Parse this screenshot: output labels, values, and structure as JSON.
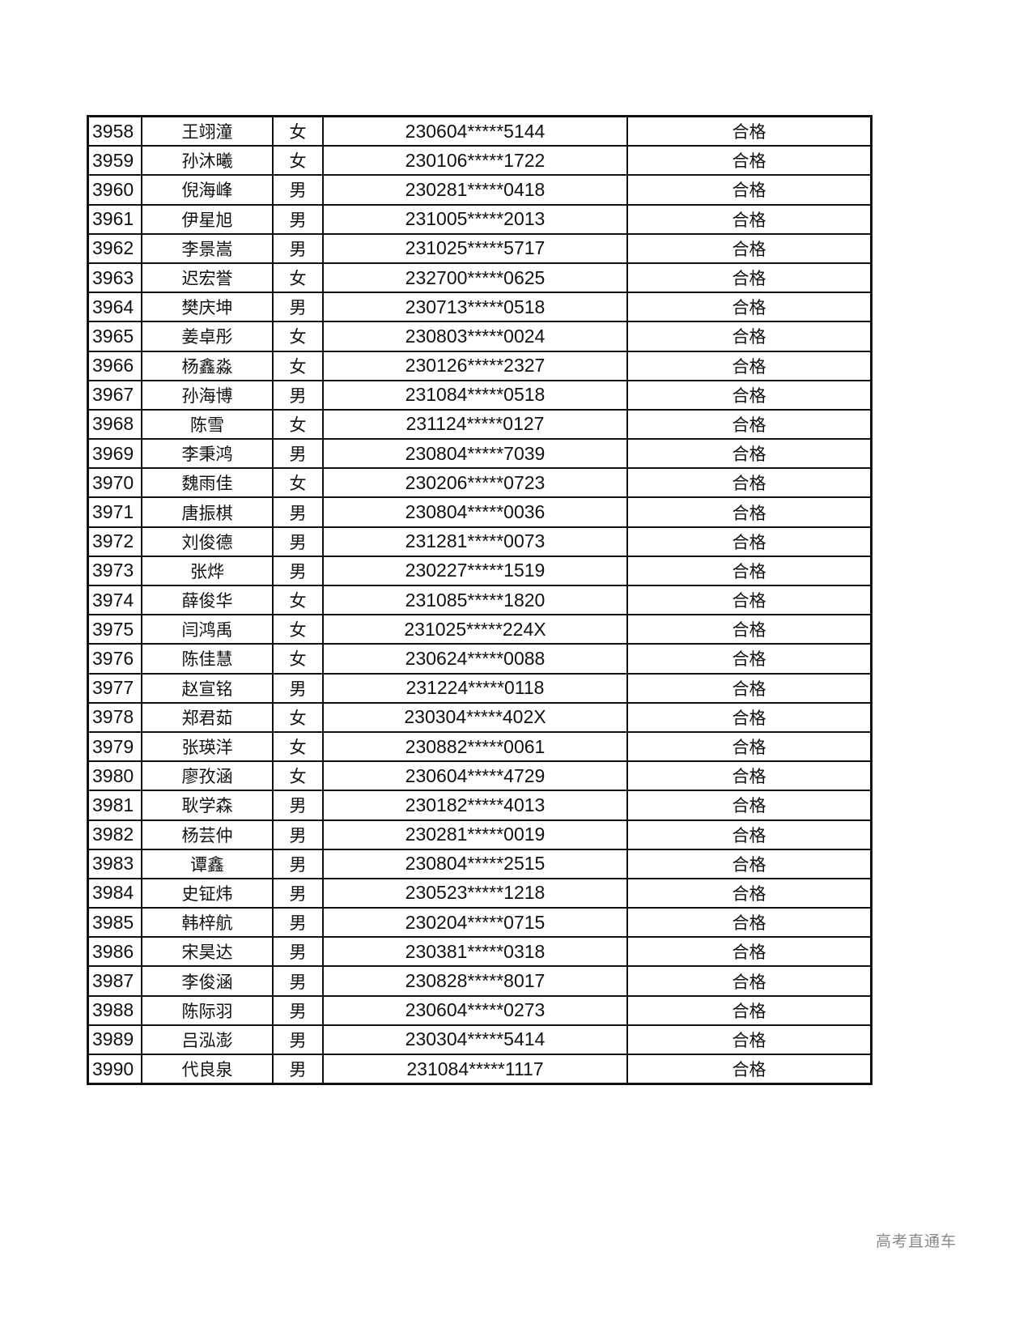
{
  "rows": [
    {
      "no": "3958",
      "name": "王翊潼",
      "sex": "女",
      "id": "230604*****5144",
      "result": "合格"
    },
    {
      "no": "3959",
      "name": "孙沐曦",
      "sex": "女",
      "id": "230106*****1722",
      "result": "合格"
    },
    {
      "no": "3960",
      "name": "倪海峰",
      "sex": "男",
      "id": "230281*****0418",
      "result": "合格"
    },
    {
      "no": "3961",
      "name": "伊星旭",
      "sex": "男",
      "id": "231005*****2013",
      "result": "合格"
    },
    {
      "no": "3962",
      "name": "李景嵩",
      "sex": "男",
      "id": "231025*****5717",
      "result": "合格"
    },
    {
      "no": "3963",
      "name": "迟宏誉",
      "sex": "女",
      "id": "232700*****0625",
      "result": "合格"
    },
    {
      "no": "3964",
      "name": "樊庆坤",
      "sex": "男",
      "id": "230713*****0518",
      "result": "合格"
    },
    {
      "no": "3965",
      "name": "姜卓彤",
      "sex": "女",
      "id": "230803*****0024",
      "result": "合格"
    },
    {
      "no": "3966",
      "name": "杨鑫淼",
      "sex": "女",
      "id": "230126*****2327",
      "result": "合格"
    },
    {
      "no": "3967",
      "name": "孙海博",
      "sex": "男",
      "id": "231084*****0518",
      "result": "合格"
    },
    {
      "no": "3968",
      "name": "陈雪",
      "sex": "女",
      "id": "231124*****0127",
      "result": "合格"
    },
    {
      "no": "3969",
      "name": "李秉鸿",
      "sex": "男",
      "id": "230804*****7039",
      "result": "合格"
    },
    {
      "no": "3970",
      "name": "魏雨佳",
      "sex": "女",
      "id": "230206*****0723",
      "result": "合格"
    },
    {
      "no": "3971",
      "name": "唐振棋",
      "sex": "男",
      "id": "230804*****0036",
      "result": "合格"
    },
    {
      "no": "3972",
      "name": "刘俊德",
      "sex": "男",
      "id": "231281*****0073",
      "result": "合格"
    },
    {
      "no": "3973",
      "name": "张烨",
      "sex": "男",
      "id": "230227*****1519",
      "result": "合格"
    },
    {
      "no": "3974",
      "name": "薛俊华",
      "sex": "女",
      "id": "231085*****1820",
      "result": "合格"
    },
    {
      "no": "3975",
      "name": "闫鸿禹",
      "sex": "女",
      "id": "231025*****224X",
      "result": "合格"
    },
    {
      "no": "3976",
      "name": "陈佳慧",
      "sex": "女",
      "id": "230624*****0088",
      "result": "合格"
    },
    {
      "no": "3977",
      "name": "赵宣铭",
      "sex": "男",
      "id": "231224*****0118",
      "result": "合格"
    },
    {
      "no": "3978",
      "name": "郑君茹",
      "sex": "女",
      "id": "230304*****402X",
      "result": "合格"
    },
    {
      "no": "3979",
      "name": "张瑛洋",
      "sex": "女",
      "id": "230882*****0061",
      "result": "合格"
    },
    {
      "no": "3980",
      "name": "廖孜涵",
      "sex": "女",
      "id": "230604*****4729",
      "result": "合格"
    },
    {
      "no": "3981",
      "name": "耿学森",
      "sex": "男",
      "id": "230182*****4013",
      "result": "合格"
    },
    {
      "no": "3982",
      "name": "杨芸仲",
      "sex": "男",
      "id": "230281*****0019",
      "result": "合格"
    },
    {
      "no": "3983",
      "name": "谭鑫",
      "sex": "男",
      "id": "230804*****2515",
      "result": "合格"
    },
    {
      "no": "3984",
      "name": "史钲炜",
      "sex": "男",
      "id": "230523*****1218",
      "result": "合格"
    },
    {
      "no": "3985",
      "name": "韩梓航",
      "sex": "男",
      "id": "230204*****0715",
      "result": "合格"
    },
    {
      "no": "3986",
      "name": "宋昊达",
      "sex": "男",
      "id": "230381*****0318",
      "result": "合格"
    },
    {
      "no": "3987",
      "name": "李俊涵",
      "sex": "男",
      "id": "230828*****8017",
      "result": "合格"
    },
    {
      "no": "3988",
      "name": "陈际羽",
      "sex": "男",
      "id": "230604*****0273",
      "result": "合格"
    },
    {
      "no": "3989",
      "name": "吕泓澎",
      "sex": "男",
      "id": "230304*****5414",
      "result": "合格"
    },
    {
      "no": "3990",
      "name": "代良泉",
      "sex": "男",
      "id": "231084*****1117",
      "result": "合格"
    }
  ],
  "watermark": "高考直通车"
}
